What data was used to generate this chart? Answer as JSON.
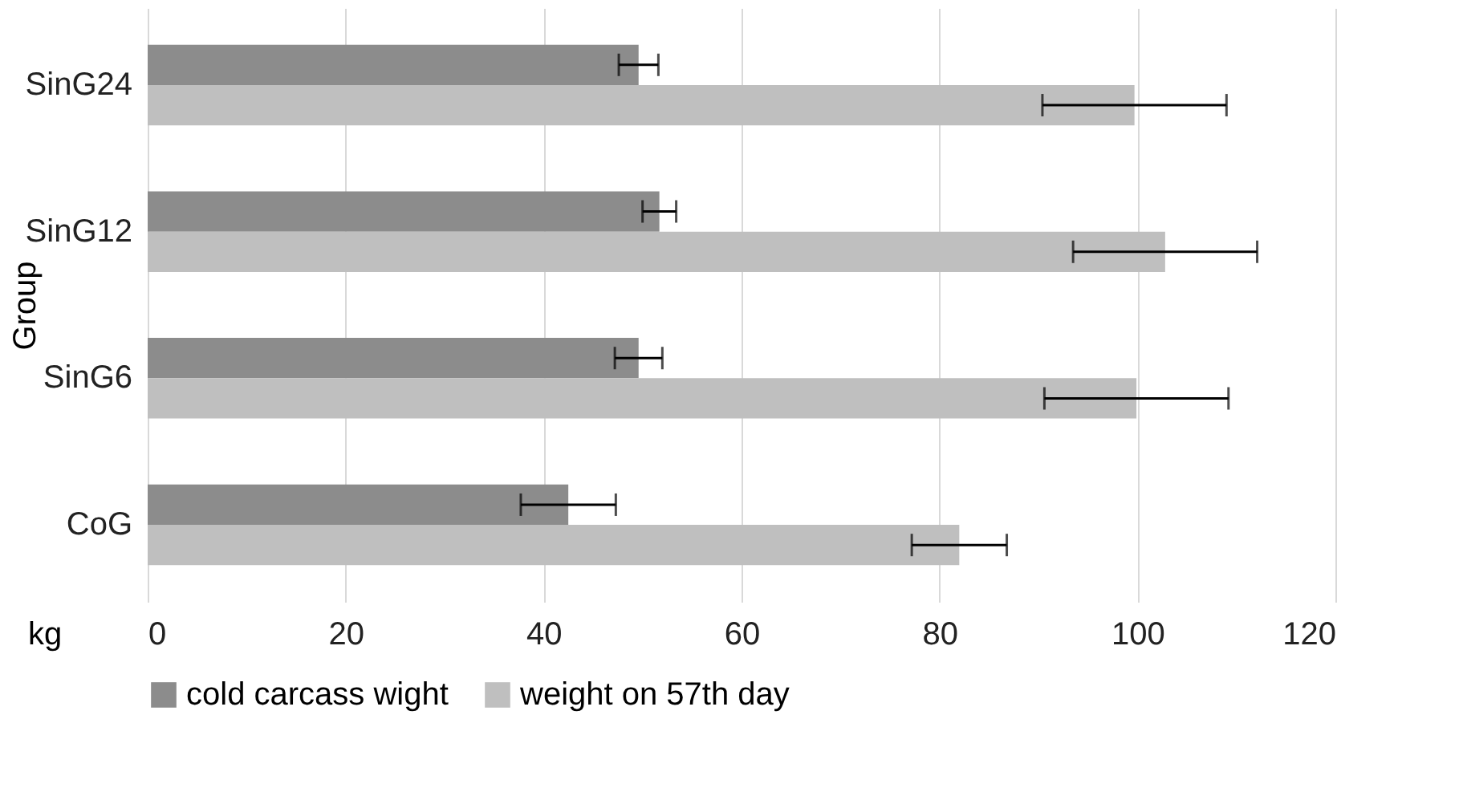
{
  "chart_data": {
    "type": "bar",
    "orientation": "horizontal",
    "ylabel": "Group",
    "xlabel": "kg",
    "categories": [
      "SinG24",
      "SinG12",
      "SinG6",
      "CoG"
    ],
    "series": [
      {
        "name": "cold carcass wight",
        "color": "#8c8c8c",
        "values": [
          49.6,
          51.7,
          49.6,
          42.5
        ],
        "errors": [
          2,
          1.7,
          2.4,
          4.8
        ]
      },
      {
        "name": "weight on 57th day",
        "color": "#bfbfbf",
        "values": [
          99.7,
          102.8,
          99.9,
          82
        ],
        "errors": [
          9.3,
          9.3,
          9.3,
          4.8
        ]
      }
    ],
    "xlim": [
      0,
      120
    ],
    "xticks": [
      0,
      20,
      40,
      60,
      80,
      100,
      120
    ],
    "grid": "x",
    "legend": "bottom"
  }
}
